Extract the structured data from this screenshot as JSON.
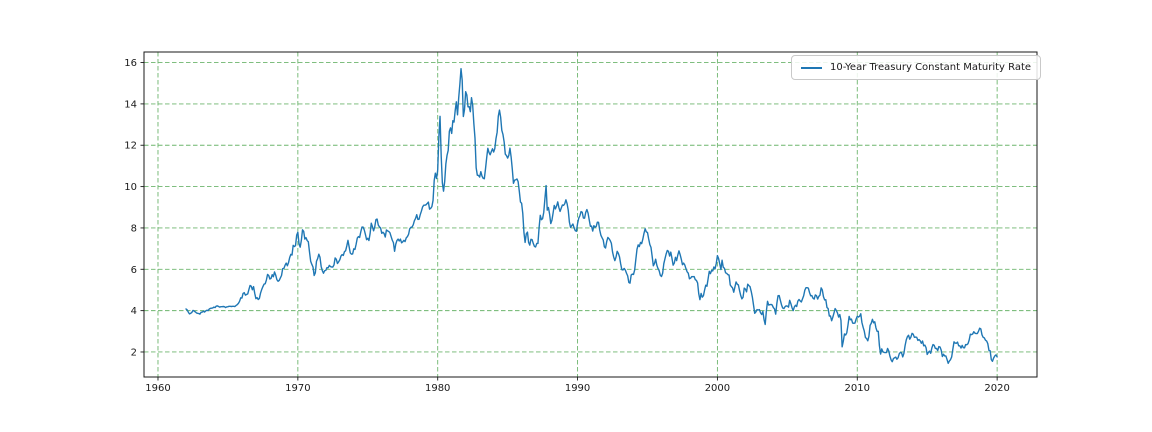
{
  "chart_data": {
    "type": "line",
    "title": "",
    "xlabel": "",
    "ylabel": "",
    "legend_label": "10-Year Treasury Constant Maturity Rate",
    "legend_position": "upper right",
    "grid": true,
    "grid_color": "#6db56d",
    "grid_style": "dashed",
    "line_color": "#1f77b4",
    "axis_color": "#1a1a1a",
    "xlim": [
      1959.0,
      2022.85
    ],
    "ylim": [
      0.79,
      16.51
    ],
    "xticks": [
      1960,
      1970,
      1980,
      1990,
      2000,
      2010,
      2020
    ],
    "yticks": [
      2,
      4,
      6,
      8,
      10,
      12,
      14,
      16
    ],
    "x_start_year": 1962.0,
    "x_step_years": 0.083333,
    "series": [
      {
        "name": "10-Year Treasury Constant Maturity Rate",
        "color": "#1f77b4",
        "values": [
          4.08,
          4.04,
          3.93,
          3.84,
          3.87,
          3.91,
          4.01,
          3.98,
          3.94,
          3.89,
          3.87,
          3.86,
          3.83,
          3.92,
          3.93,
          3.97,
          3.93,
          3.99,
          4.02,
          4.0,
          4.08,
          4.11,
          4.12,
          4.13,
          4.17,
          4.15,
          4.22,
          4.23,
          4.2,
          4.17,
          4.19,
          4.19,
          4.2,
          4.19,
          4.15,
          4.18,
          4.19,
          4.21,
          4.21,
          4.2,
          4.21,
          4.21,
          4.2,
          4.25,
          4.29,
          4.35,
          4.45,
          4.62,
          4.61,
          4.83,
          4.87,
          4.75,
          4.78,
          4.81,
          5.02,
          5.22,
          5.18,
          5.01,
          5.16,
          4.84,
          4.58,
          4.63,
          4.54,
          4.59,
          4.85,
          5.02,
          5.16,
          5.28,
          5.3,
          5.48,
          5.75,
          5.7,
          5.53,
          5.56,
          5.74,
          5.64,
          5.87,
          5.72,
          5.5,
          5.42,
          5.46,
          5.58,
          5.7,
          6.03,
          6.04,
          6.19,
          6.3,
          6.17,
          6.32,
          6.57,
          6.72,
          6.69,
          7.16,
          7.1,
          7.14,
          7.65,
          7.79,
          7.24,
          7.07,
          7.39,
          7.91,
          7.84,
          7.46,
          7.53,
          7.39,
          7.33,
          6.84,
          6.39,
          6.24,
          6.11,
          5.7,
          5.83,
          6.39,
          6.52,
          6.73,
          6.58,
          6.14,
          5.93,
          5.81,
          5.93,
          5.95,
          6.08,
          6.07,
          6.19,
          6.13,
          6.11,
          6.11,
          6.21,
          6.55,
          6.48,
          6.28,
          6.36,
          6.46,
          6.64,
          6.71,
          6.67,
          6.85,
          6.9,
          7.13,
          7.4,
          7.09,
          6.79,
          6.73,
          6.74,
          6.99,
          6.96,
          7.21,
          7.51,
          7.58,
          7.54,
          7.81,
          8.04,
          8.04,
          7.9,
          7.68,
          7.43,
          7.5,
          7.39,
          7.73,
          8.23,
          8.06,
          7.86,
          8.06,
          8.4,
          8.43,
          8.14,
          8.05,
          8.0,
          7.74,
          7.79,
          7.73,
          7.56,
          7.9,
          7.86,
          7.83,
          7.77,
          7.59,
          7.41,
          7.29,
          6.87,
          7.21,
          7.39,
          7.46,
          7.37,
          7.46,
          7.28,
          7.33,
          7.4,
          7.34,
          7.52,
          7.58,
          7.69,
          7.96,
          8.03,
          8.04,
          8.15,
          8.35,
          8.46,
          8.64,
          8.41,
          8.42,
          8.64,
          8.81,
          9.01,
          9.1,
          9.1,
          9.12,
          9.18,
          9.25,
          8.91,
          8.95,
          9.03,
          9.33,
          10.3,
          10.65,
          10.39,
          10.8,
          12.41,
          13.4,
          11.47,
          10.18,
          9.78,
          10.25,
          11.1,
          11.51,
          11.75,
          12.68,
          12.84,
          12.57,
          13.19,
          13.12,
          13.68,
          14.1,
          13.47,
          14.28,
          14.94,
          15.7,
          15.15,
          13.39,
          13.72,
          14.59,
          14.43,
          13.86,
          13.87,
          13.62,
          14.3,
          13.95,
          13.06,
          12.34,
          10.91,
          10.55,
          10.54,
          10.46,
          10.72,
          10.51,
          10.4,
          10.38,
          10.85,
          11.38,
          11.85,
          11.65,
          11.54,
          11.69,
          11.83,
          11.67,
          11.84,
          12.32,
          12.63,
          13.41,
          13.7,
          13.36,
          12.72,
          12.52,
          12.16,
          11.57,
          11.5,
          11.38,
          11.51,
          11.86,
          11.43,
          10.85,
          10.16,
          10.31,
          10.33,
          10.37,
          10.24,
          9.78,
          9.26,
          9.19,
          8.7,
          7.78,
          7.3,
          7.71,
          7.8,
          7.3,
          7.17,
          7.45,
          7.43,
          7.25,
          7.11,
          7.08,
          7.25,
          7.25,
          8.02,
          8.61,
          8.4,
          8.45,
          8.76,
          9.42,
          10.05,
          8.86,
          8.99,
          8.67,
          8.21,
          8.37,
          8.72,
          9.09,
          8.92,
          9.06,
          9.26,
          8.98,
          8.8,
          8.96,
          9.11,
          9.09,
          9.17,
          9.36,
          9.18,
          8.86,
          8.28,
          8.02,
          8.11,
          8.19,
          8.01,
          7.87,
          7.84,
          8.21,
          8.47,
          8.59,
          8.79,
          8.76,
          8.48,
          8.47,
          8.75,
          8.89,
          8.72,
          8.39,
          8.08,
          8.09,
          7.85,
          8.11,
          8.04,
          8.07,
          8.28,
          8.27,
          7.9,
          7.65,
          7.53,
          7.42,
          7.09,
          7.03,
          7.34,
          7.54,
          7.48,
          7.39,
          7.26,
          6.84,
          6.59,
          6.42,
          6.59,
          6.87,
          6.77,
          6.6,
          6.26,
          5.98,
          5.97,
          6.04,
          5.96,
          5.81,
          5.68,
          5.36,
          5.33,
          5.72,
          5.77,
          5.75,
          5.97,
          6.48,
          6.97,
          7.18,
          7.1,
          7.3,
          7.24,
          7.46,
          7.74,
          7.96,
          7.81,
          7.78,
          7.47,
          7.2,
          7.06,
          6.63,
          6.17,
          6.28,
          6.49,
          6.2,
          6.04,
          5.93,
          5.71,
          5.65,
          5.81,
          6.27,
          6.51,
          6.74,
          6.91,
          6.87,
          6.64,
          6.83,
          6.53,
          6.2,
          6.3,
          6.58,
          6.42,
          6.69,
          6.89,
          6.71,
          6.49,
          6.22,
          6.3,
          6.21,
          6.03,
          5.88,
          5.81,
          5.54,
          5.57,
          5.65,
          5.64,
          5.65,
          5.5,
          5.46,
          5.34,
          4.81,
          4.53,
          4.83,
          4.65,
          4.72,
          5.0,
          5.23,
          5.18,
          5.54,
          5.9,
          5.79,
          5.94,
          5.92,
          6.11,
          6.03,
          6.28,
          6.66,
          6.52,
          6.26,
          5.99,
          6.44,
          6.1,
          6.05,
          5.83,
          5.8,
          5.74,
          5.72,
          5.24,
          5.16,
          5.1,
          4.89,
          5.14,
          5.39,
          5.28,
          5.24,
          4.97,
          4.73,
          4.57,
          4.65,
          5.09,
          5.04,
          4.91,
          5.28,
          5.21,
          5.16,
          4.93,
          4.65,
          4.26,
          3.87,
          3.94,
          4.05,
          4.03,
          4.05,
          3.9,
          3.81,
          3.96,
          3.57,
          3.33,
          3.98,
          4.45,
          4.27,
          4.29,
          4.3,
          4.27,
          4.15,
          4.08,
          3.83,
          4.35,
          4.72,
          4.73,
          4.5,
          4.28,
          4.13,
          4.1,
          4.19,
          4.23,
          4.22,
          4.17,
          4.5,
          4.34,
          4.14,
          4.0,
          4.18,
          4.26,
          4.2,
          4.46,
          4.54,
          4.47,
          4.42,
          4.57,
          4.72,
          4.99,
          5.11,
          5.11,
          5.09,
          4.88,
          4.72,
          4.73,
          4.6,
          4.56,
          4.76,
          4.72,
          4.56,
          4.69,
          4.75,
          5.1,
          5.0,
          4.67,
          4.52,
          4.53,
          4.15,
          4.1,
          3.74,
          3.74,
          3.51,
          3.68,
          3.88,
          4.1,
          4.01,
          3.89,
          3.69,
          3.81,
          3.53,
          2.25,
          2.52,
          2.87,
          2.82,
          2.93,
          3.29,
          3.72,
          3.56,
          3.59,
          3.4,
          3.39,
          3.4,
          3.59,
          3.73,
          3.69,
          3.73,
          3.85,
          3.42,
          3.2,
          3.01,
          2.7,
          2.65,
          2.54,
          2.76,
          3.29,
          3.39,
          3.58,
          3.41,
          3.46,
          3.17,
          3.0,
          3.0,
          2.3,
          1.9,
          2.15,
          2.01,
          1.98,
          1.97,
          1.97,
          2.17,
          2.05,
          1.8,
          1.62,
          1.53,
          1.68,
          1.72,
          1.75,
          1.65,
          1.72,
          1.91,
          1.98,
          1.96,
          1.76,
          1.93,
          2.3,
          2.58,
          2.74,
          2.81,
          2.62,
          2.72,
          2.9,
          2.86,
          2.71,
          2.72,
          2.71,
          2.56,
          2.6,
          2.54,
          2.42,
          2.53,
          2.3,
          2.33,
          2.21,
          1.88,
          1.98,
          2.04,
          1.94,
          2.2,
          2.36,
          2.32,
          2.17,
          2.17,
          2.07,
          2.26,
          2.24,
          2.09,
          1.78,
          1.89,
          1.81,
          1.81,
          1.64,
          1.45,
          1.56,
          1.63,
          1.76,
          2.14,
          2.49,
          2.43,
          2.42,
          2.48,
          2.3,
          2.3,
          2.19,
          2.32,
          2.21,
          2.2,
          2.36,
          2.35,
          2.4,
          2.58,
          2.86,
          2.84,
          2.87,
          2.98,
          2.91,
          2.89,
          2.89,
          3.0,
          3.15,
          3.12,
          2.83,
          2.71,
          2.68,
          2.57,
          2.53,
          2.4,
          2.07,
          2.06,
          1.63,
          1.55,
          1.71,
          1.81,
          1.86,
          1.76
        ]
      }
    ]
  }
}
